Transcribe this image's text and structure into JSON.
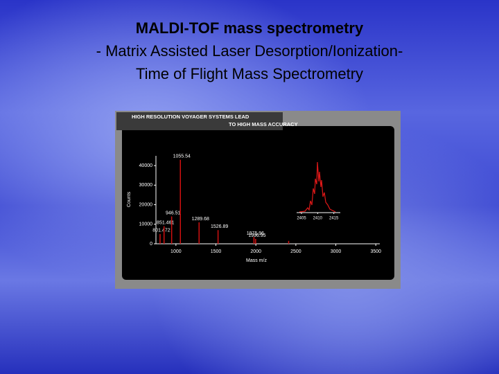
{
  "slide": {
    "title_lines": [
      "MALDI-TOF mass spectrometry",
      "- Matrix Assisted Laser Desorption/Ionization-",
      "Time of Flight Mass  Spectrometry"
    ]
  },
  "chart_data": {
    "type": "stem",
    "title": "HIGH RESOLUTION VOYAGER SYSTEMS LEAD",
    "subtitle": "TO HIGH MASS ACCURACY",
    "x_label": "Mass m/z",
    "y_label": "Counts",
    "x": [
      801.472,
      851.461,
      946.51,
      1055.54,
      1289.68,
      1526.89,
      1975.96,
      1996.95,
      2410
    ],
    "values": [
      5000,
      9000,
      14000,
      43000,
      11000,
      7000,
      3500,
      2500,
      1500
    ],
    "labeled": [
      true,
      true,
      true,
      true,
      true,
      true,
      true,
      true,
      false
    ],
    "color": "#d01010",
    "xlim": [
      750,
      3550
    ],
    "xticks": [
      1000,
      1500,
      2000,
      2500,
      3000,
      3500
    ],
    "ylim": [
      0,
      45000
    ],
    "yticks": [
      0,
      10000,
      20000,
      30000,
      40000
    ],
    "inset": {
      "xlim": [
        2403.5,
        2417
      ],
      "xticks": [
        2405,
        2410,
        2415
      ]
    }
  }
}
